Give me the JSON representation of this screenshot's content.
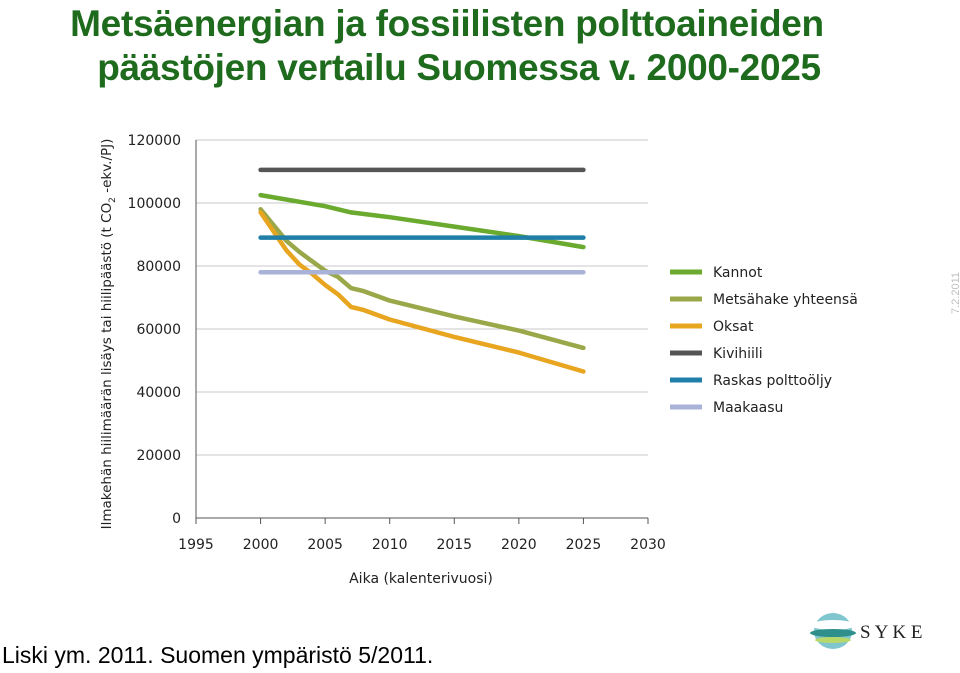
{
  "title_line1": "Metsäenergian ja fossiilisten polttoaineiden",
  "title_line2": "päästöjen vertailu Suomessa v. 2000-2025",
  "date": "7.2.2011",
  "source": "Liski ym. 2011. Suomen ympäristö 5/2011.",
  "logo_text": "S Y K E",
  "chart_data": {
    "type": "line",
    "title": "Metsäenergian ja fossiilisten polttoaineiden päästöjen vertailu Suomessa v. 2000-2025",
    "xlabel": "Aika (kalenterivuosi)",
    "ylabel_main": "Ilmakehän hiilimäärän lisäys tai hiilipäästö (t CO",
    "ylabel_sub": "2",
    "ylabel_tail": " -ekv./PJ)",
    "xlim": [
      1995,
      2030
    ],
    "ylim": [
      0,
      120000
    ],
    "x_ticks": [
      "1995",
      "2000",
      "2005",
      "2010",
      "2015",
      "2020",
      "2025",
      "2030"
    ],
    "y_ticks": [
      "0",
      "20000",
      "40000",
      "60000",
      "80000",
      "100000",
      "120000"
    ],
    "grid": "horizontal",
    "legend_position": "right",
    "series": [
      {
        "name": "Kannot",
        "color": "#6aaa2e",
        "x": [
          2000,
          2005,
          2007,
          2010,
          2015,
          2020,
          2025
        ],
        "y": [
          102500,
          99000,
          97000,
          95500,
          92500,
          89500,
          86000
        ]
      },
      {
        "name": "Metsähake yhteensä",
        "color": "#9aa84a",
        "x": [
          2000,
          2001,
          2002,
          2003,
          2004,
          2005,
          2006,
          2007,
          2008,
          2010,
          2015,
          2020,
          2025
        ],
        "y": [
          98000,
          93000,
          88000,
          84500,
          81500,
          78500,
          76500,
          73000,
          72000,
          69000,
          64000,
          59500,
          54000
        ]
      },
      {
        "name": "Oksat",
        "color": "#e8a520",
        "x": [
          2000,
          2001,
          2002,
          2003,
          2004,
          2005,
          2006,
          2007,
          2008,
          2010,
          2015,
          2020,
          2025
        ],
        "y": [
          97000,
          91000,
          85000,
          80500,
          77500,
          74000,
          71000,
          67000,
          66000,
          63000,
          57500,
          52500,
          46500
        ]
      },
      {
        "name": "Kivihiili",
        "color": "#555555",
        "x": [
          2000,
          2025
        ],
        "y": [
          110500,
          110500
        ]
      },
      {
        "name": "Raskas polttoöljy",
        "color": "#1f7fa8",
        "x": [
          2000,
          2025
        ],
        "y": [
          89000,
          89000
        ]
      },
      {
        "name": "Maakaasu",
        "color": "#a9b3d8",
        "x": [
          2000,
          2025
        ],
        "y": [
          78000,
          78000
        ]
      }
    ]
  }
}
